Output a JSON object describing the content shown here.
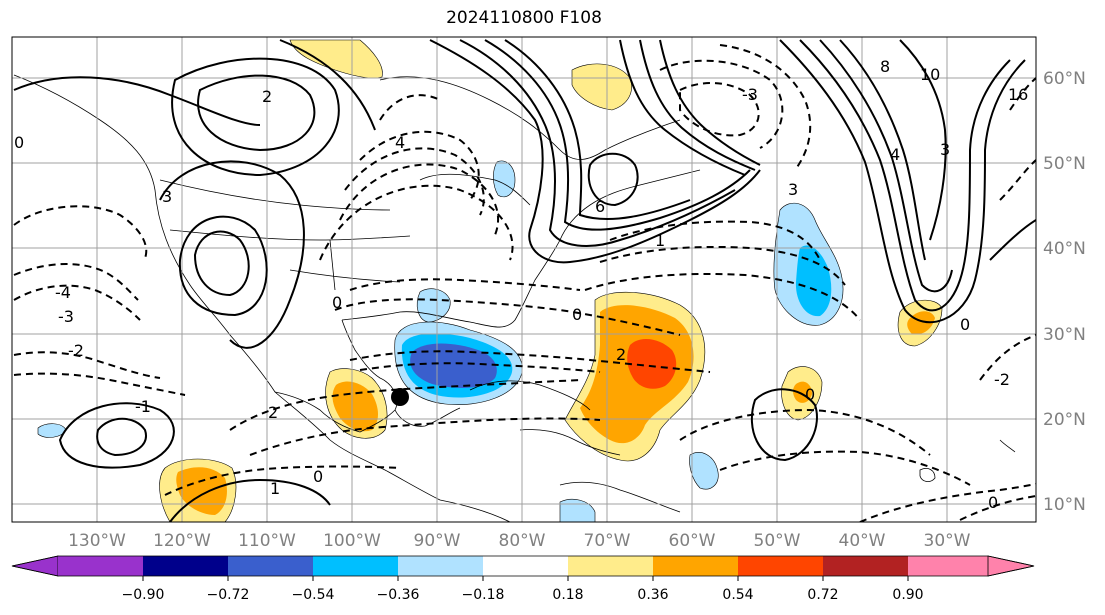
{
  "title": "2024110800 F108",
  "longitude_labels": [
    "130°W",
    "120°W",
    "110°W",
    "100°W",
    "90°W",
    "80°W",
    "70°W",
    "60°W",
    "50°W",
    "40°W",
    "30°W"
  ],
  "latitude_labels": [
    "60°N",
    "50°N",
    "40°N",
    "30°N",
    "20°N",
    "10°N"
  ],
  "colorbar": {
    "tick_labels": [
      "−0.90",
      "−0.72",
      "−0.54",
      "−0.36",
      "−0.18",
      "0.18",
      "0.36",
      "0.54",
      "0.72",
      "0.90"
    ],
    "colors": [
      "#9932cc",
      "#00008b",
      "#3a5fcd",
      "#00bfff",
      "#b0e2ff",
      "#ffffff",
      "#ffec8b",
      "#ffa500",
      "#ff4500",
      "#b22222",
      "#ff82ab"
    ]
  },
  "contour_labels": [
    "2",
    "3",
    "4",
    "0",
    "1",
    "-2",
    "-3",
    "-4",
    "-1",
    "6",
    "8",
    "10",
    "16"
  ],
  "marker": "storm-center"
}
